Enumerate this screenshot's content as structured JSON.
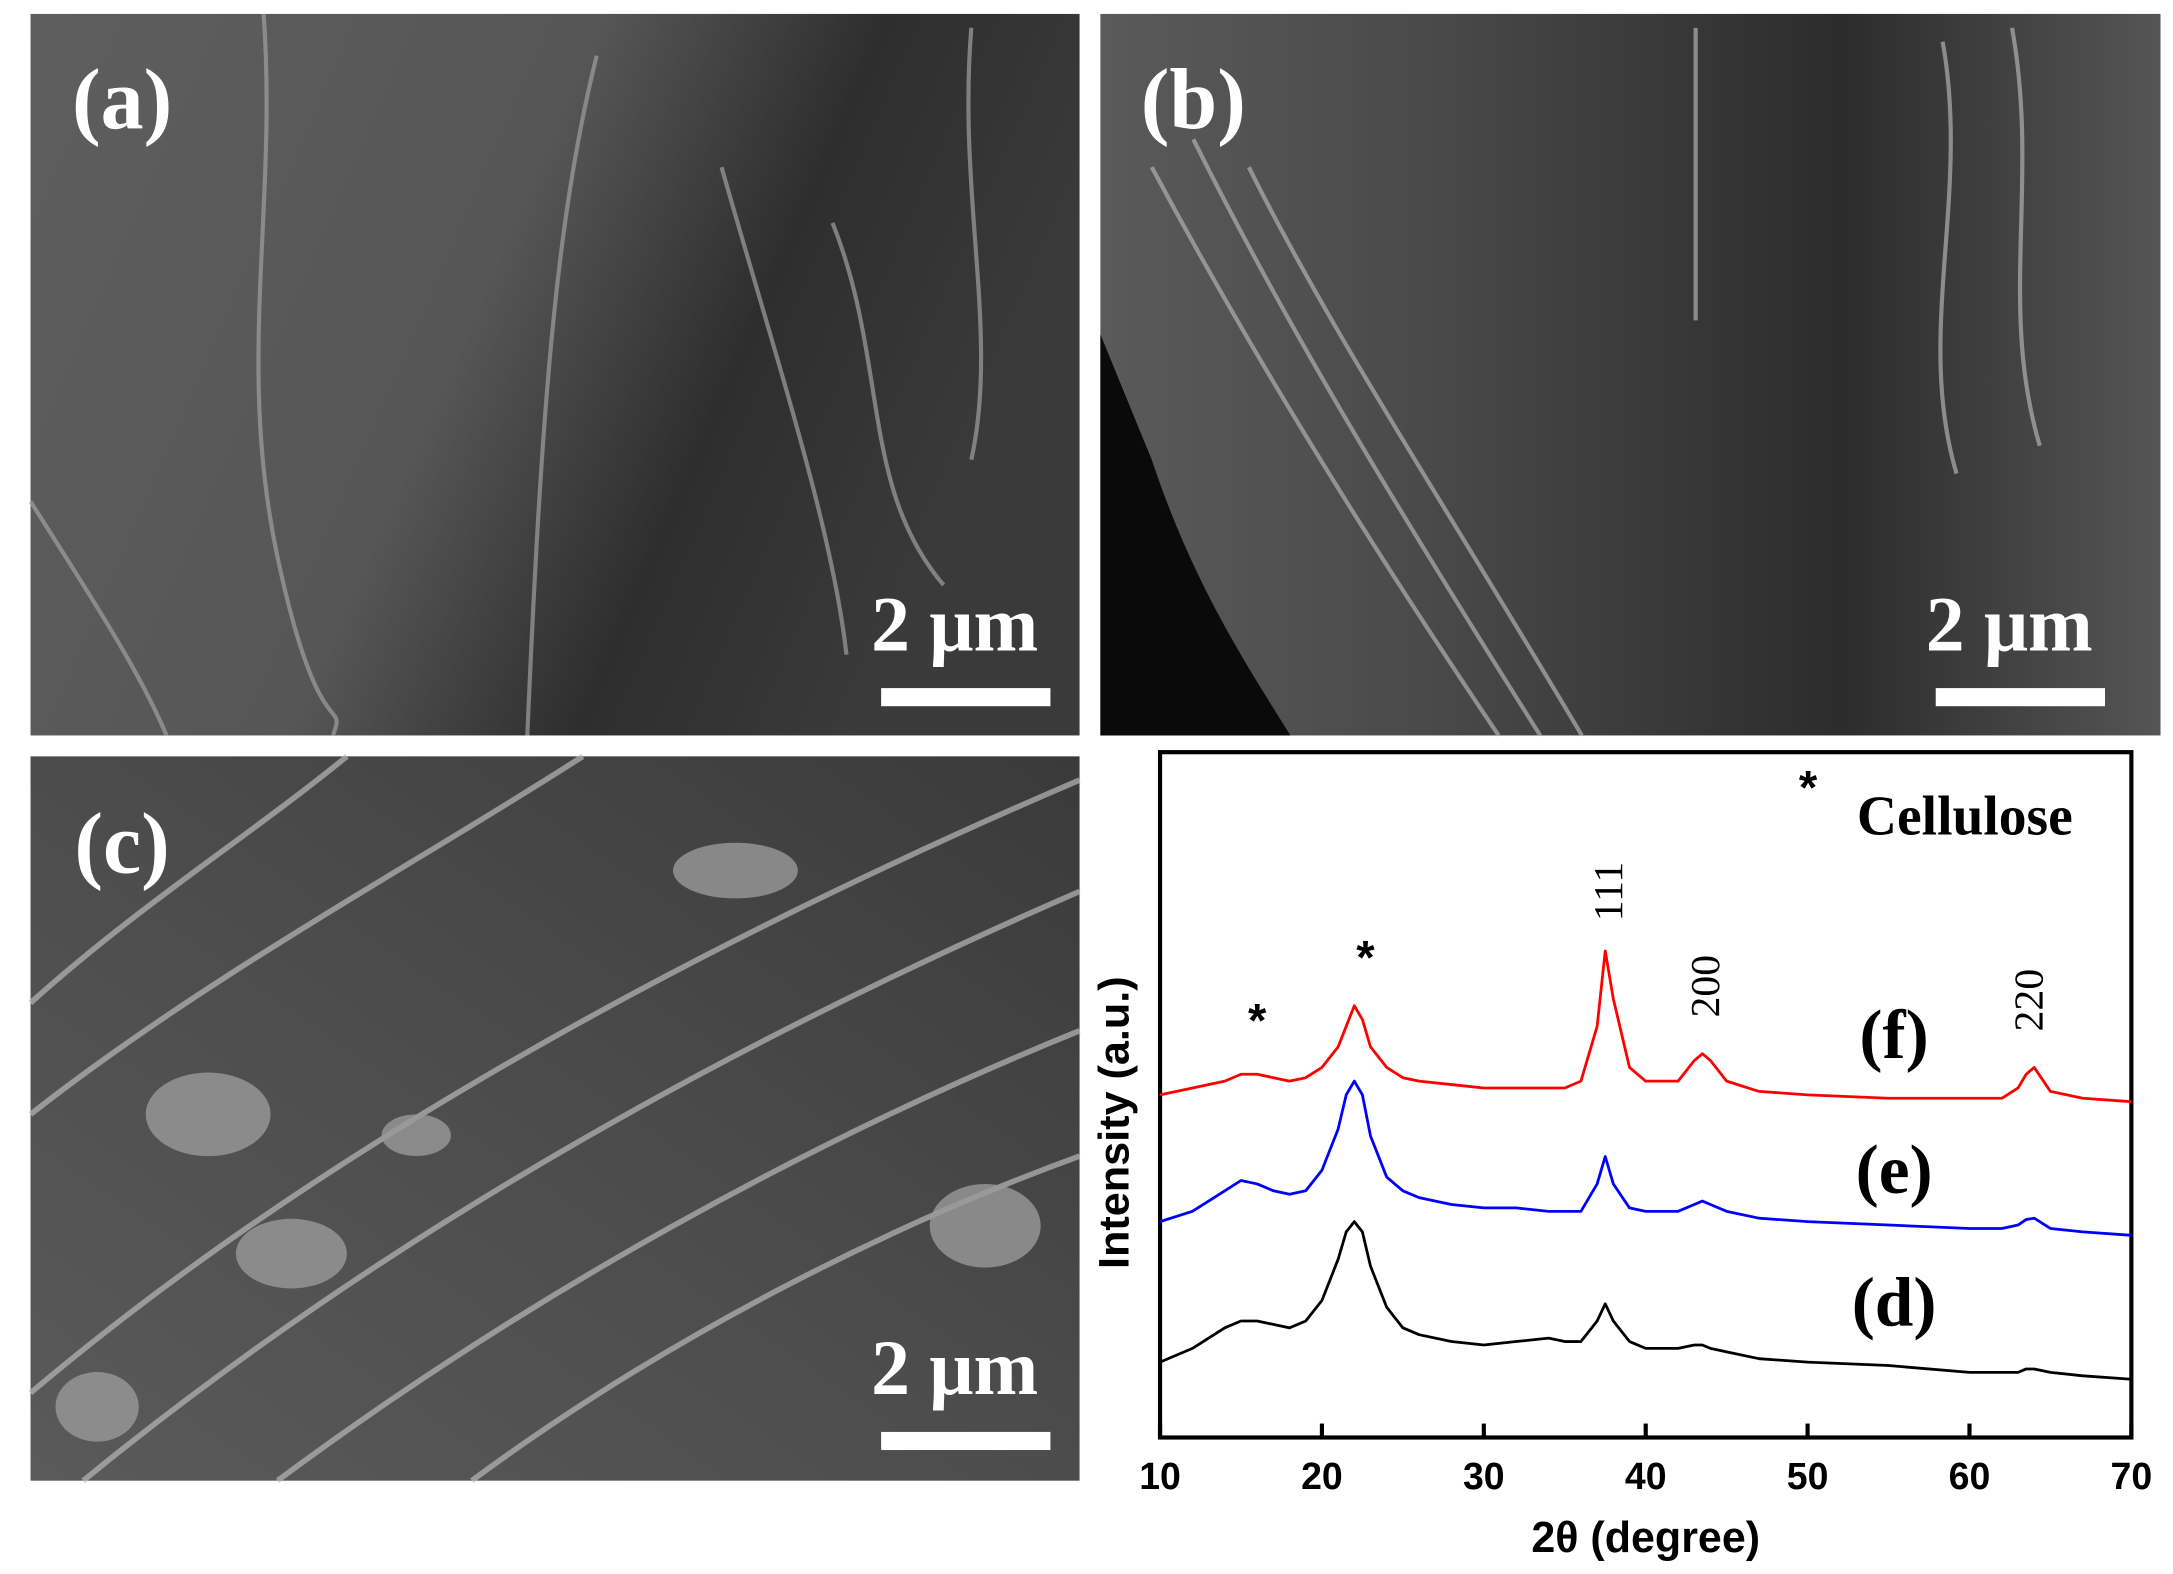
{
  "images": [
    {
      "label": "(a)",
      "scale_bar": "2 μm"
    },
    {
      "label": "(b)",
      "scale_bar": "2 μm"
    },
    {
      "label": "(c)",
      "scale_bar": "2 μm"
    }
  ],
  "chart_data": {
    "type": "line",
    "xlabel": "2θ (degree)",
    "ylabel": "Intensity (a.u.)",
    "xlim": [
      10,
      70
    ],
    "xticks": [
      10,
      20,
      30,
      40,
      50,
      60,
      70
    ],
    "ylim": [
      0,
      100
    ],
    "annotations": [
      "*",
      "*",
      "111",
      "200",
      "220",
      "*",
      "Cellulose"
    ],
    "x": [
      10,
      12,
      14,
      15,
      16,
      17,
      18,
      19,
      20,
      21,
      21.5,
      22,
      22.5,
      23,
      24,
      25,
      26,
      28,
      30,
      32,
      34,
      35,
      36,
      37,
      37.5,
      38,
      39,
      40,
      42,
      43,
      43.5,
      44,
      45,
      47,
      50,
      55,
      60,
      62,
      63,
      63.5,
      64,
      65,
      67,
      70
    ],
    "series": [
      {
        "name": "(d)",
        "color": "#000000",
        "values": [
          11,
          13,
          16,
          17,
          17,
          16.5,
          16,
          17,
          20,
          26,
          30,
          31.5,
          30,
          25,
          19,
          16,
          15,
          14,
          13.5,
          14,
          14.5,
          14,
          14,
          17,
          19.5,
          17,
          14,
          13,
          13,
          13.5,
          13.5,
          13,
          12.5,
          11.5,
          11,
          10.5,
          9.5,
          9.5,
          9.5,
          10,
          10,
          9.5,
          9,
          8.5
        ]
      },
      {
        "name": "(e)",
        "color": "#0000ff",
        "values": [
          31.5,
          33,
          36,
          37.5,
          37,
          36,
          35.5,
          36,
          39,
          45,
          50,
          52,
          50,
          44,
          38,
          36,
          35,
          34,
          33.5,
          33.5,
          33,
          33,
          33,
          37,
          41,
          37,
          33.5,
          33,
          33,
          34,
          34.5,
          34,
          33,
          32,
          31.5,
          31,
          30.5,
          30.5,
          31,
          31.8,
          32,
          30.5,
          30,
          29.5
        ]
      },
      {
        "name": "(f)",
        "color": "#ff0000",
        "values": [
          50,
          51,
          52,
          53,
          53,
          52.5,
          52,
          52.5,
          54,
          57,
          60,
          63,
          61,
          57,
          54,
          52.5,
          52,
          51.5,
          51,
          51,
          51,
          51,
          52,
          60,
          71,
          64,
          54,
          52,
          52,
          55,
          56,
          55,
          52,
          50.5,
          50,
          49.5,
          49.5,
          49.5,
          51,
          53,
          54,
          50.5,
          49.5,
          49
        ]
      }
    ]
  }
}
